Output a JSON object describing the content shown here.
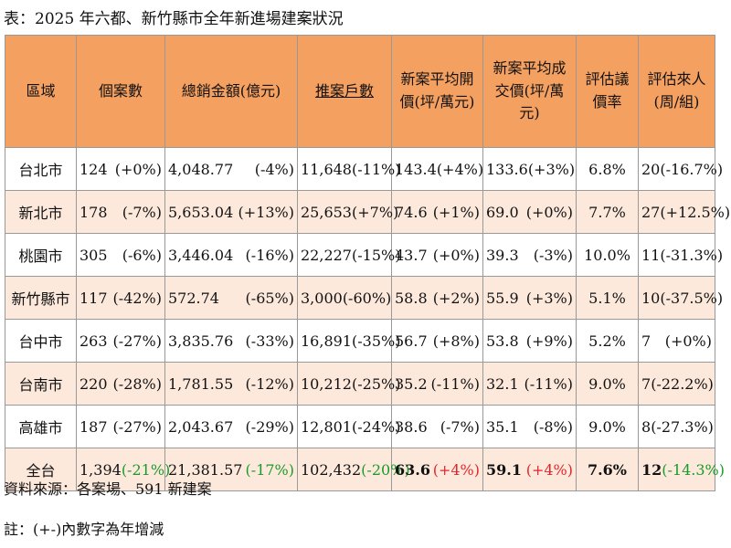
{
  "title": "表：2025 年六都、新竹縣市全年新進場建案狀況",
  "table": {
    "headers": [
      "區域",
      "個案數",
      "總銷金額(億元)",
      "推案戶數",
      "新案平均開價(坪/萬元)",
      "新案平均成交價(坪/萬元)",
      "評估議價率",
      "評估來人(周/組)"
    ],
    "rows": [
      {
        "region": "台北市",
        "cells": [
          [
            "124",
            "(+0%)"
          ],
          [
            "4,048.77",
            "(-4%)"
          ],
          [
            "11,648",
            "(-11%)"
          ],
          [
            "143.4",
            "(+4%)"
          ],
          [
            "133.6",
            "(+3%)"
          ],
          [
            "6.8%"
          ],
          [
            "20",
            "(-16.7%)"
          ]
        ]
      },
      {
        "region": "新北市",
        "cells": [
          [
            "178",
            "(-7%)"
          ],
          [
            "5,653.04",
            "(+13%)"
          ],
          [
            "25,653",
            "(+7%)"
          ],
          [
            "74.6",
            "(+1%)"
          ],
          [
            "69.0",
            "(+0%)"
          ],
          [
            "7.7%"
          ],
          [
            "27",
            "(+12.5%)"
          ]
        ]
      },
      {
        "region": "桃園市",
        "cells": [
          [
            "305",
            "(-6%)"
          ],
          [
            "3,446.04",
            "(-16%)"
          ],
          [
            "22,227",
            "(-15%)"
          ],
          [
            "43.7",
            "(+0%)"
          ],
          [
            "39.3",
            "(-3%)"
          ],
          [
            "10.0%"
          ],
          [
            "11",
            "(-31.3%)"
          ]
        ]
      },
      {
        "region": "新竹縣市",
        "cells": [
          [
            "117",
            "(-42%)"
          ],
          [
            "572.74",
            "(-65%)"
          ],
          [
            "3,000",
            "(-60%)"
          ],
          [
            "58.8",
            "(+2%)"
          ],
          [
            "55.9",
            "(+3%)"
          ],
          [
            "5.1%"
          ],
          [
            "10",
            "(-37.5%)"
          ]
        ]
      },
      {
        "region": "台中市",
        "cells": [
          [
            "263",
            "(-27%)"
          ],
          [
            "3,835.76",
            "(-33%)"
          ],
          [
            "16,891",
            "(-35%)"
          ],
          [
            "56.7",
            "(+8%)"
          ],
          [
            "53.8",
            "(+9%)"
          ],
          [
            "5.2%"
          ],
          [
            "7",
            "(+0%)"
          ]
        ]
      },
      {
        "region": "台南市",
        "cells": [
          [
            "220",
            "(-28%)"
          ],
          [
            "1,781.55",
            "(-12%)"
          ],
          [
            "10,212",
            "(-25%)"
          ],
          [
            "35.2",
            "(-11%)"
          ],
          [
            "32.1",
            "(-11%)"
          ],
          [
            "9.0%"
          ],
          [
            "7",
            "(-22.2%)"
          ]
        ]
      },
      {
        "region": "高雄市",
        "cells": [
          [
            "187",
            "(-27%)"
          ],
          [
            "2,043.67",
            "(-29%)"
          ],
          [
            "12,801",
            "(-24%)"
          ],
          [
            "38.6",
            "(-7%)"
          ],
          [
            "35.1",
            "(-8%)"
          ],
          [
            "9.0%"
          ],
          [
            "8",
            "(-27.3%)"
          ]
        ]
      },
      {
        "region": "全台",
        "cells": [
          [
            "1,394",
            "(-21%)"
          ],
          [
            "21,381.57",
            "(-17%)"
          ],
          [
            "102,432",
            "(-20%)"
          ],
          [
            "63.6",
            "(+4%)"
          ],
          [
            "59.1",
            "(+4%)"
          ],
          [
            "7.6%"
          ],
          [
            "12",
            "(-14.3%)"
          ]
        ]
      }
    ]
  },
  "footer": {
    "source": "資料來源：各案場、591 新建案",
    "note": "註：(+-)內數字為年增減"
  }
}
